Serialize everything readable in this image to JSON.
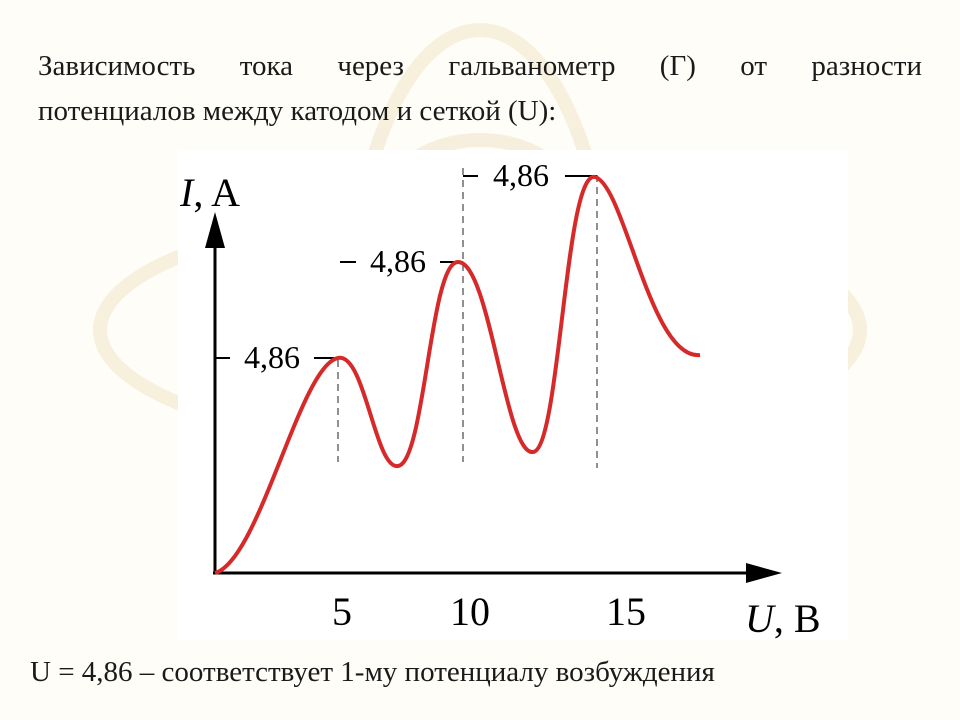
{
  "header": {
    "lines": [
      "Зависимость тока через гальванометр (Г) от разности",
      "потенциалов между катодом и сеткой (U):"
    ]
  },
  "figure": {
    "y_axis": {
      "variable": "I",
      "unit": ", A"
    },
    "x_axis": {
      "variable": "U",
      "unit": ", B"
    },
    "x_ticks": [
      "5",
      "10",
      "15"
    ],
    "peak_labels": [
      "4,86",
      "4,86",
      "4,86"
    ]
  },
  "footer": {
    "text": "U = 4,86 – соответствует 1-му потенциалу возбуждения"
  }
}
